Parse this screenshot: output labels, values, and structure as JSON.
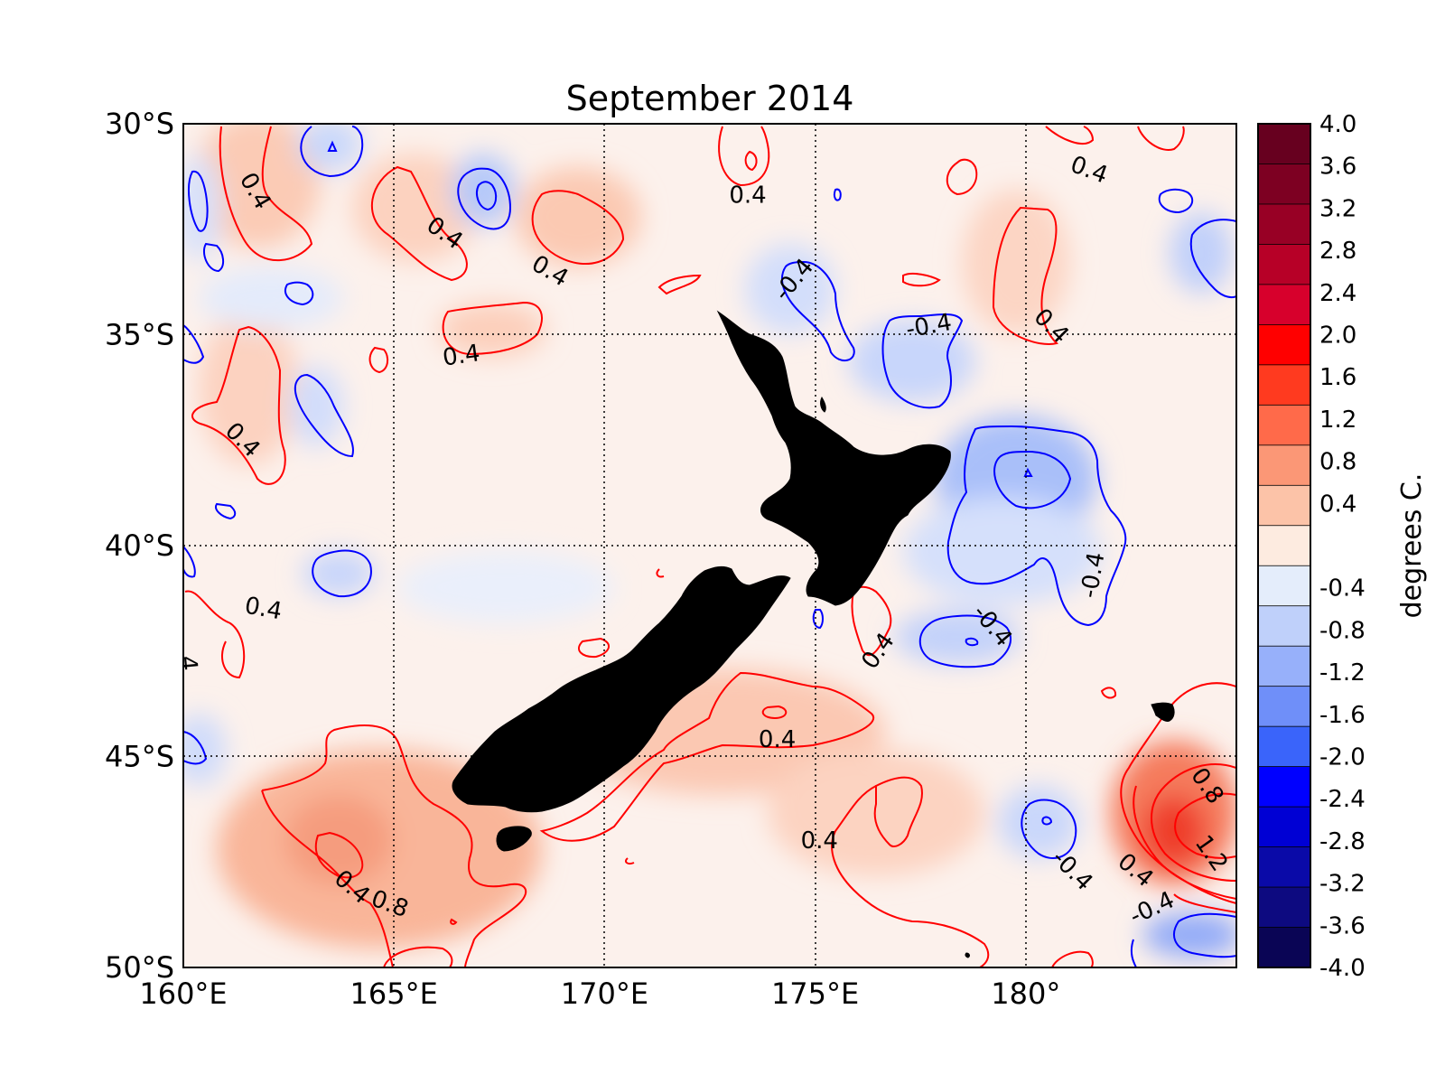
{
  "title": "September 2014",
  "map": {
    "lon_range": [
      160,
      185
    ],
    "lat_range": [
      -50,
      -30
    ],
    "lon_ticks": [
      {
        "value": 160,
        "label": "160°E"
      },
      {
        "value": 165,
        "label": "165°E"
      },
      {
        "value": 170,
        "label": "170°E"
      },
      {
        "value": 175,
        "label": "175°E"
      },
      {
        "value": 180,
        "label": "180°"
      }
    ],
    "lat_ticks": [
      {
        "value": -30,
        "label": "30°S"
      },
      {
        "value": -35,
        "label": "35°S"
      },
      {
        "value": -40,
        "label": "40°S"
      },
      {
        "value": -45,
        "label": "45°S"
      },
      {
        "value": -50,
        "label": "50°S"
      }
    ],
    "land_color": "#000000",
    "positive_contour_color": "#ff0000",
    "negative_contour_color": "#0000ff",
    "contour_labels": [
      {
        "text": "0.4",
        "lon": 161.7,
        "lat": -31.6,
        "rotate": 60,
        "color": "#000000"
      },
      {
        "text": "0.4",
        "lon": 166.2,
        "lat": -32.6,
        "rotate": 35
      },
      {
        "text": "0.4",
        "lon": 168.7,
        "lat": -33.5,
        "rotate": 30
      },
      {
        "text": "0.4",
        "lon": 173.4,
        "lat": -31.7,
        "rotate": 0
      },
      {
        "text": "0.4",
        "lon": 166.6,
        "lat": -35.5,
        "rotate": -8
      },
      {
        "text": "0.4",
        "lon": 161.4,
        "lat": -37.5,
        "rotate": 45
      },
      {
        "text": "0.4",
        "lon": 161.9,
        "lat": -41.5,
        "rotate": 10
      },
      {
        "text": ".4",
        "lon": 160.1,
        "lat": -42.7,
        "rotate": 85
      },
      {
        "text": "-0.4",
        "lon": 174.5,
        "lat": -33.7,
        "rotate": -50
      },
      {
        "text": "-0.4",
        "lon": 177.7,
        "lat": -34.8,
        "rotate": -10
      },
      {
        "text": "0.4",
        "lon": 180.6,
        "lat": -34.8,
        "rotate": 45
      },
      {
        "text": "0.4",
        "lon": 181.5,
        "lat": -31.1,
        "rotate": 20
      },
      {
        "text": "-0.4",
        "lon": 181.6,
        "lat": -40.7,
        "rotate": -80
      },
      {
        "text": "-0.4",
        "lon": 179.2,
        "lat": -41.9,
        "rotate": 50
      },
      {
        "text": "0.4",
        "lon": 176.5,
        "lat": -42.5,
        "rotate": -55
      },
      {
        "text": "0.4",
        "lon": 174.1,
        "lat": -44.6,
        "rotate": 0
      },
      {
        "text": "0.4",
        "lon": 175.1,
        "lat": -47.0,
        "rotate": 0
      },
      {
        "text": "0.8",
        "lon": 184.3,
        "lat": -45.7,
        "rotate": 55
      },
      {
        "text": "1.2",
        "lon": 184.4,
        "lat": -47.3,
        "rotate": 55
      },
      {
        "text": "-0.4",
        "lon": 181.1,
        "lat": -47.7,
        "rotate": 45
      },
      {
        "text": "0.4",
        "lon": 182.6,
        "lat": -47.7,
        "rotate": 40
      },
      {
        "text": "-0.4",
        "lon": 183.0,
        "lat": -48.6,
        "rotate": -25
      },
      {
        "text": "0.4",
        "lon": 164.0,
        "lat": -48.1,
        "rotate": 40
      },
      {
        "text": "0.8",
        "lon": 164.9,
        "lat": -48.5,
        "rotate": 20
      }
    ]
  },
  "colorbar": {
    "label": "degrees C.",
    "tick_labels": [
      "4.0",
      "3.6",
      "3.2",
      "2.8",
      "2.4",
      "2.0",
      "1.6",
      "1.2",
      "0.8",
      "0.4",
      "",
      "-0.4",
      "-0.8",
      "-1.2",
      "-1.6",
      "-2.0",
      "-2.4",
      "-2.8",
      "-3.2",
      "-3.6",
      "-4.0"
    ],
    "colors": [
      "#67001f",
      "#7d0022",
      "#980025",
      "#b70027",
      "#d7002c",
      "#ff0000",
      "#ff3a1f",
      "#ff6a4a",
      "#fb9776",
      "#fcc3a8",
      "#fdebe0",
      "#e4edfb",
      "#bfd0fa",
      "#97b0fa",
      "#6f8ff9",
      "#3a64fa",
      "#0000ff",
      "#0000d4",
      "#0a0aa8",
      "#0d0a80",
      "#0a0555"
    ]
  }
}
